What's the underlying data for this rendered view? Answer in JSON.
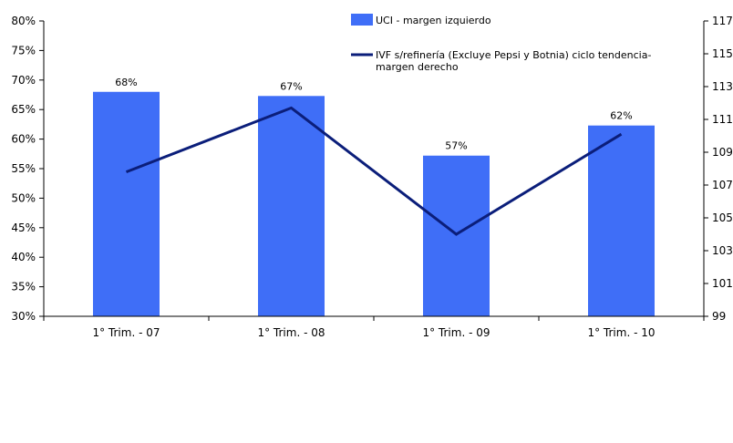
{
  "chart_data": {
    "type": "bar",
    "categories": [
      "1° Trim. - 07",
      "1° Trim. - 08",
      "1° Trim. - 09",
      "1° Trim. - 10"
    ],
    "series": [
      {
        "name": "UCI - margen izquierdo",
        "type": "bar",
        "axis": "left",
        "color": "#3f6ef7",
        "values": [
          68,
          67.3,
          57.2,
          62.3
        ],
        "labels": [
          "68%",
          "67%",
          "57%",
          "62%"
        ]
      },
      {
        "name": "IVF s/refinería (Excluye Pepsi y Botnia) ciclo tendencia-",
        "name_line2": "margen derecho",
        "type": "line",
        "axis": "right",
        "color": "#0b1e7a",
        "values": [
          107.8,
          111.7,
          104.0,
          110.1
        ]
      }
    ],
    "yleft": {
      "ylim": [
        30,
        80
      ],
      "ticks": [
        "30%",
        "35%",
        "40%",
        "45%",
        "50%",
        "55%",
        "60%",
        "65%",
        "70%",
        "75%",
        "80%"
      ]
    },
    "yright": {
      "ylim": [
        99,
        117
      ],
      "ticks": [
        "99",
        "101",
        "103",
        "105",
        "107",
        "109",
        "111",
        "113",
        "115",
        "117"
      ]
    },
    "grid": false,
    "legend": "top-right"
  }
}
